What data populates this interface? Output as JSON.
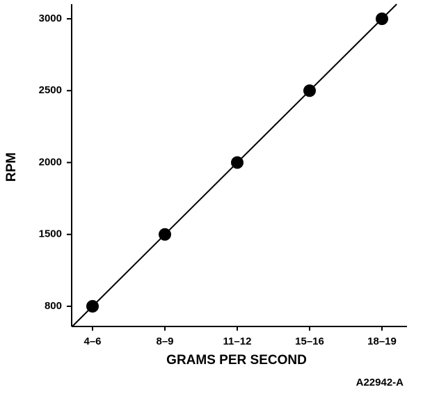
{
  "chart_data": {
    "type": "scatter",
    "x_label": "GRAMS PER SECOND",
    "y_label": "RPM",
    "figure_id": "A22942-A",
    "categories": [
      "4–6",
      "8–9",
      "11–12",
      "15–16",
      "18–19"
    ],
    "values": [
      800,
      1500,
      2000,
      2500,
      3000
    ],
    "ylim": [
      600,
      3100
    ],
    "yticks": [
      800,
      1500,
      2000,
      2500,
      3000
    ],
    "color": "#000000",
    "trend_line": true
  }
}
